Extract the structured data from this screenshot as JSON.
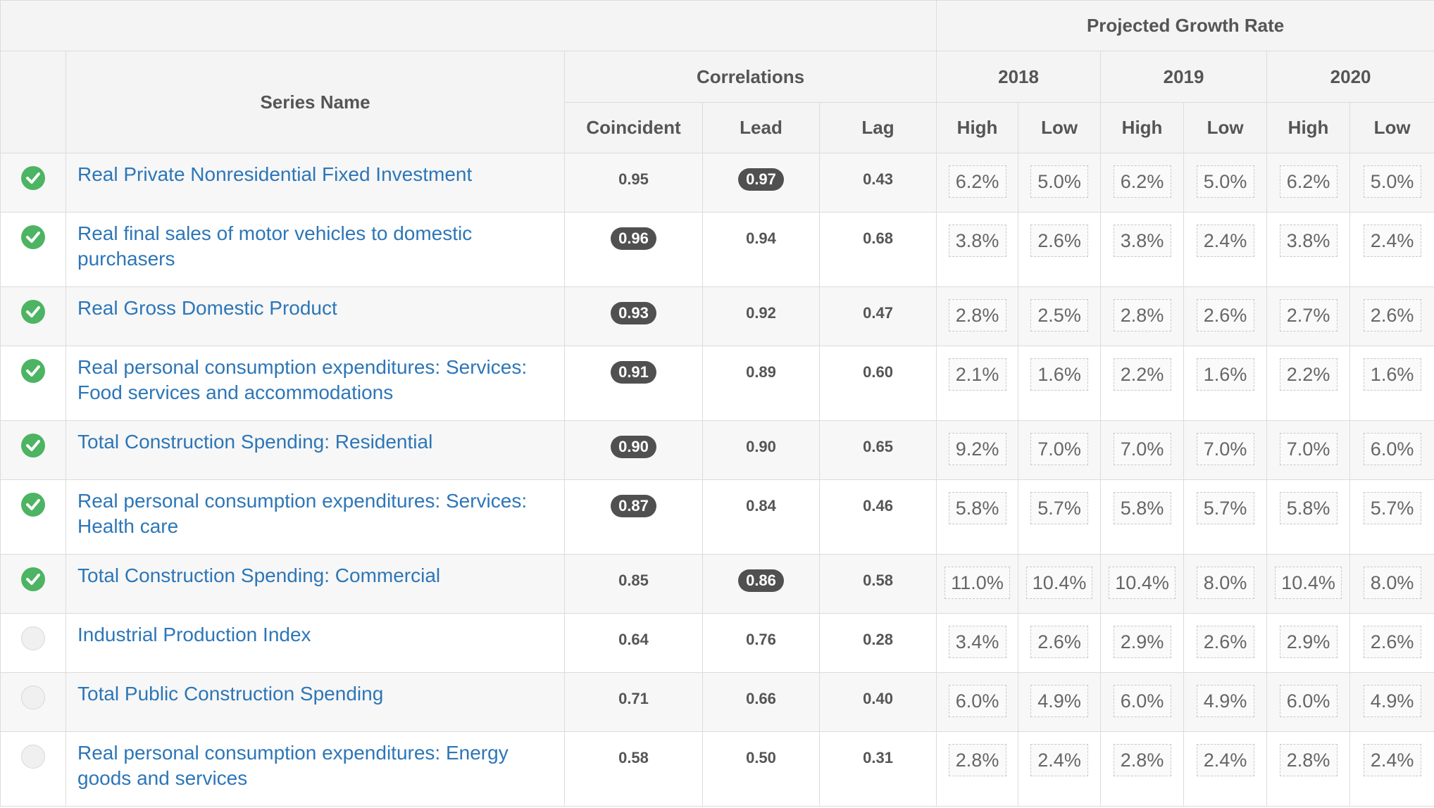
{
  "headers": {
    "projected_growth_rate": "Projected Growth Rate",
    "series_name": "Series Name",
    "correlations": "Correlations",
    "years": [
      "2018",
      "2019",
      "2020"
    ],
    "coincident": "Coincident",
    "lead": "Lead",
    "lag": "Lag",
    "high": "High",
    "low": "Low"
  },
  "rows": [
    {
      "checked": true,
      "name": "Real Private Nonresidential Fixed Investment",
      "coincident": "0.95",
      "lead": "0.97",
      "lag": "0.43",
      "highlight": "lead",
      "rates": [
        "6.2%",
        "5.0%",
        "6.2%",
        "5.0%",
        "6.2%",
        "5.0%"
      ]
    },
    {
      "checked": true,
      "name": "Real final sales of motor vehicles to domestic purchasers",
      "coincident": "0.96",
      "lead": "0.94",
      "lag": "0.68",
      "highlight": "coincident",
      "rates": [
        "3.8%",
        "2.6%",
        "3.8%",
        "2.4%",
        "3.8%",
        "2.4%"
      ]
    },
    {
      "checked": true,
      "name": "Real Gross Domestic Product",
      "coincident": "0.93",
      "lead": "0.92",
      "lag": "0.47",
      "highlight": "coincident",
      "rates": [
        "2.8%",
        "2.5%",
        "2.8%",
        "2.6%",
        "2.7%",
        "2.6%"
      ]
    },
    {
      "checked": true,
      "name": "Real personal consumption expenditures: Services: Food services and accommodations",
      "coincident": "0.91",
      "lead": "0.89",
      "lag": "0.60",
      "highlight": "coincident",
      "rates": [
        "2.1%",
        "1.6%",
        "2.2%",
        "1.6%",
        "2.2%",
        "1.6%"
      ]
    },
    {
      "checked": true,
      "name": "Total Construction Spending: Residential",
      "coincident": "0.90",
      "lead": "0.90",
      "lag": "0.65",
      "highlight": "coincident",
      "rates": [
        "9.2%",
        "7.0%",
        "7.0%",
        "7.0%",
        "7.0%",
        "6.0%"
      ]
    },
    {
      "checked": true,
      "name": "Real personal consumption expenditures: Services: Health care",
      "coincident": "0.87",
      "lead": "0.84",
      "lag": "0.46",
      "highlight": "coincident",
      "rates": [
        "5.8%",
        "5.7%",
        "5.8%",
        "5.7%",
        "5.8%",
        "5.7%"
      ]
    },
    {
      "checked": true,
      "name": "Total Construction Spending: Commercial",
      "coincident": "0.85",
      "lead": "0.86",
      "lag": "0.58",
      "highlight": "lead",
      "rates": [
        "11.0%",
        "10.4%",
        "10.4%",
        "8.0%",
        "10.4%",
        "8.0%"
      ]
    },
    {
      "checked": false,
      "name": "Industrial Production Index",
      "coincident": "0.64",
      "lead": "0.76",
      "lag": "0.28",
      "highlight": "",
      "rates": [
        "3.4%",
        "2.6%",
        "2.9%",
        "2.6%",
        "2.9%",
        "2.6%"
      ]
    },
    {
      "checked": false,
      "name": "Total Public Construction Spending",
      "coincident": "0.71",
      "lead": "0.66",
      "lag": "0.40",
      "highlight": "",
      "rates": [
        "6.0%",
        "4.9%",
        "6.0%",
        "4.9%",
        "6.0%",
        "4.9%"
      ]
    },
    {
      "checked": false,
      "name": "Real personal consumption expenditures: Energy goods and services",
      "coincident": "0.58",
      "lead": "0.50",
      "lag": "0.31",
      "highlight": "",
      "rates": [
        "2.8%",
        "2.4%",
        "2.8%",
        "2.4%",
        "2.8%",
        "2.4%"
      ]
    }
  ],
  "colors": {
    "check_on": "#4cb462",
    "link": "#2d76b7",
    "pill": "#505050"
  }
}
